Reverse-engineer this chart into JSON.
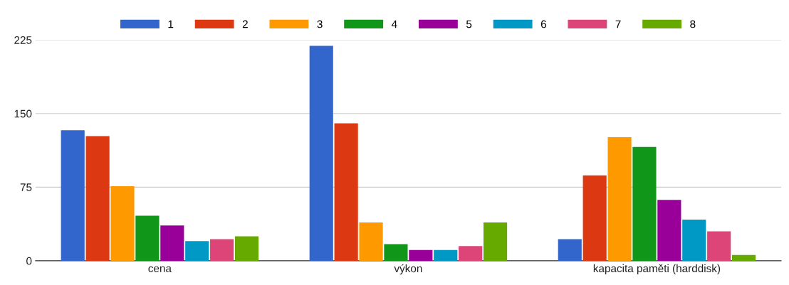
{
  "chart_data": {
    "type": "bar",
    "categories": [
      "cena",
      "výkon",
      "kapacita paměti (harddisk)"
    ],
    "series": [
      {
        "name": "1",
        "color": "#3366cc",
        "values": [
          133,
          219,
          22
        ]
      },
      {
        "name": "2",
        "color": "#dc3912",
        "values": [
          127,
          140,
          87
        ]
      },
      {
        "name": "3",
        "color": "#ff9900",
        "values": [
          76,
          39,
          126
        ]
      },
      {
        "name": "4",
        "color": "#109618",
        "values": [
          46,
          17,
          116
        ]
      },
      {
        "name": "5",
        "color": "#990099",
        "values": [
          36,
          11,
          62
        ]
      },
      {
        "name": "6",
        "color": "#0099c6",
        "values": [
          20,
          11,
          42
        ]
      },
      {
        "name": "7",
        "color": "#dd4477",
        "values": [
          22,
          15,
          30
        ]
      },
      {
        "name": "8",
        "color": "#66aa00",
        "values": [
          25,
          39,
          6
        ]
      }
    ],
    "ylim": [
      0,
      225
    ],
    "yticks": [
      0,
      75,
      150,
      225
    ],
    "grid": "y",
    "legend": "top"
  }
}
